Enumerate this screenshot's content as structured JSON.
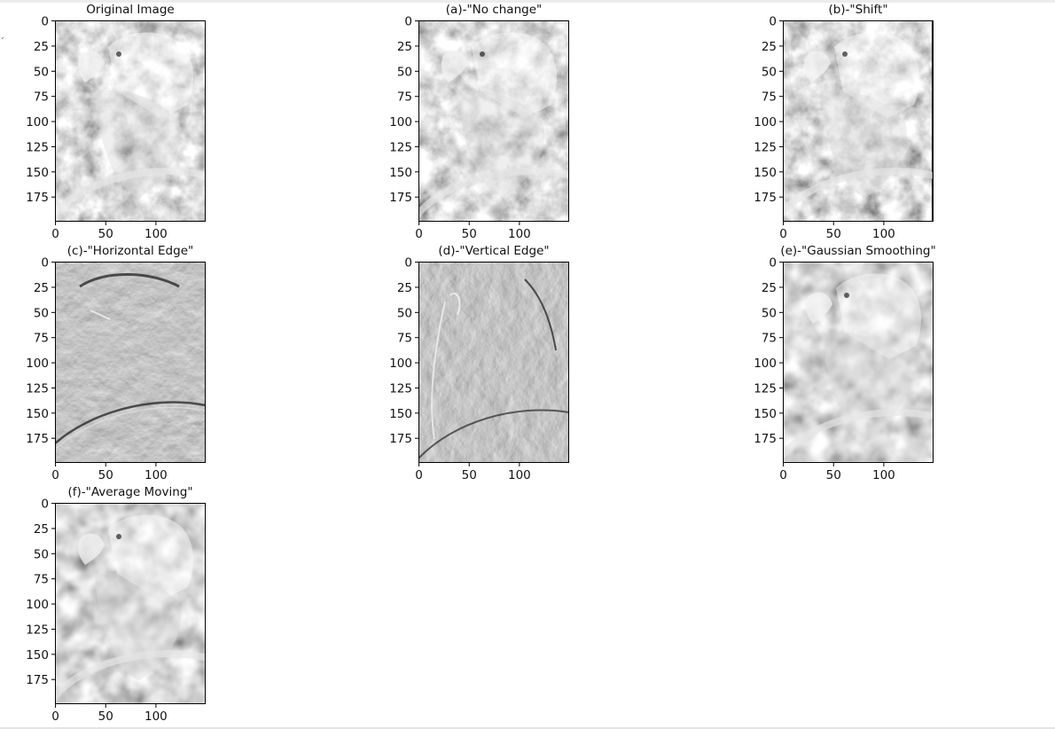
{
  "chart_data": [
    {
      "type": "image",
      "title": "Original Image",
      "variant": "original",
      "x_ticks": [
        "0",
        "50",
        "100"
      ],
      "y_ticks": [
        "0",
        "25",
        "50",
        "75",
        "100",
        "125",
        "150",
        "175"
      ],
      "xlim": [
        0,
        150
      ],
      "ylim": [
        200,
        0
      ],
      "colormap": "gray"
    },
    {
      "type": "image",
      "title": "(a)-\"No change\"",
      "variant": "original",
      "x_ticks": [
        "0",
        "50",
        "100"
      ],
      "y_ticks": [
        "0",
        "25",
        "50",
        "75",
        "100",
        "125",
        "150",
        "175"
      ],
      "xlim": [
        0,
        150
      ],
      "ylim": [
        200,
        0
      ],
      "colormap": "gray"
    },
    {
      "type": "image",
      "title": "(b)-\"Shift\"",
      "variant": "shift",
      "x_ticks": [
        "0",
        "50",
        "100"
      ],
      "y_ticks": [
        "0",
        "25",
        "50",
        "75",
        "100",
        "125",
        "150",
        "175"
      ],
      "xlim": [
        0,
        150
      ],
      "ylim": [
        200,
        0
      ],
      "colormap": "gray"
    },
    {
      "type": "image",
      "title": "(c)-\"Horizontal Edge\"",
      "variant": "hedge",
      "x_ticks": [
        "0",
        "50",
        "100"
      ],
      "y_ticks": [
        "0",
        "25",
        "50",
        "75",
        "100",
        "125",
        "150",
        "175"
      ],
      "xlim": [
        0,
        150
      ],
      "ylim": [
        200,
        0
      ],
      "colormap": "gray"
    },
    {
      "type": "image",
      "title": "(d)-\"Vertical Edge\"",
      "variant": "vedge",
      "x_ticks": [
        "0",
        "50",
        "100"
      ],
      "y_ticks": [
        "0",
        "25",
        "50",
        "75",
        "100",
        "125",
        "150",
        "175"
      ],
      "xlim": [
        0,
        150
      ],
      "ylim": [
        200,
        0
      ],
      "colormap": "gray"
    },
    {
      "type": "image",
      "title": "(e)-\"Gaussian Smoothing\"",
      "variant": "blur",
      "x_ticks": [
        "0",
        "50",
        "100"
      ],
      "y_ticks": [
        "0",
        "25",
        "50",
        "75",
        "100",
        "125",
        "150",
        "175"
      ],
      "xlim": [
        0,
        150
      ],
      "ylim": [
        200,
        0
      ],
      "colormap": "gray"
    },
    {
      "type": "image",
      "title": "(f)-\"Average Moving\"",
      "variant": "blur",
      "x_ticks": [
        "0",
        "50",
        "100"
      ],
      "y_ticks": [
        "0",
        "25",
        "50",
        "75",
        "100",
        "125",
        "150",
        "175"
      ],
      "xlim": [
        0,
        150
      ],
      "ylim": [
        200,
        0
      ],
      "colormap": "gray"
    }
  ]
}
